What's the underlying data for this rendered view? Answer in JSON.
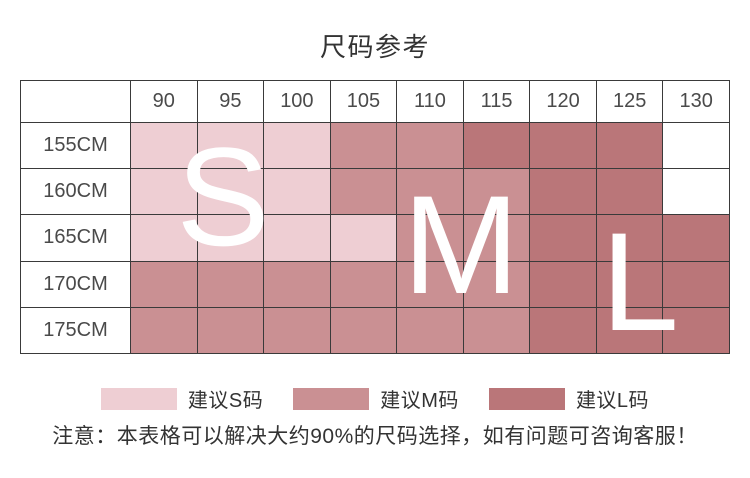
{
  "title": "尺码参考",
  "chart_data": {
    "type": "heatmap",
    "title": "尺码参考",
    "x_categories": [
      "90",
      "95",
      "100",
      "105",
      "110",
      "115",
      "120",
      "125",
      "130"
    ],
    "y_categories": [
      "155CM",
      "160CM",
      "165CM",
      "170CM",
      "175CM"
    ],
    "corner_label": "",
    "cell_sizes": [
      [
        "S",
        "S",
        "S",
        "M",
        "M",
        "L",
        "L",
        "L",
        ""
      ],
      [
        "S",
        "S",
        "S",
        "M",
        "M",
        "M",
        "L",
        "L",
        ""
      ],
      [
        "S",
        "S",
        "S",
        "S",
        "M",
        "M",
        "L",
        "L",
        "L"
      ],
      [
        "M",
        "M",
        "M",
        "M",
        "M",
        "M",
        "L",
        "L",
        "L"
      ],
      [
        "M",
        "M",
        "M",
        "M",
        "M",
        "M",
        "L",
        "L",
        "L"
      ]
    ],
    "overlay_letters": [
      "S",
      "M",
      "L"
    ],
    "legend_position": "bottom",
    "grid": true
  },
  "colors": {
    "size_s_fill": "#eeced3",
    "size_m_fill": "#ca9093",
    "size_l_fill": "#ba7679",
    "grid_line": "#3a3a3a",
    "title_text": "#333333",
    "cell_text": "#4a4a4a",
    "note_text": "#333333",
    "overlay_letter": "#ffffff"
  },
  "legend": {
    "items": [
      {
        "size": "S",
        "label": "建议S码"
      },
      {
        "size": "M",
        "label": "建议M码"
      },
      {
        "size": "L",
        "label": "建议L码"
      }
    ]
  },
  "note": "注意：本表格可以解决大约90%的尺码选择，如有问题可咨询客服！"
}
